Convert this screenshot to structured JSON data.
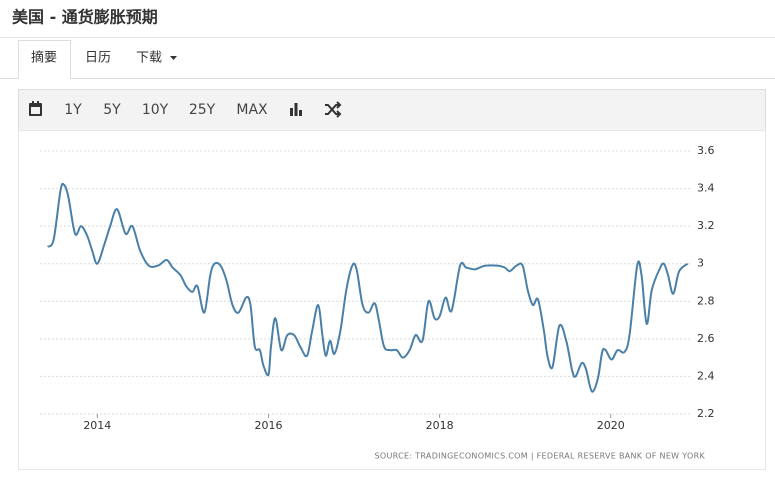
{
  "header": {
    "title": "美国 - 通货膨胀预期"
  },
  "tabs": [
    "摘要",
    "日历",
    "下载"
  ],
  "toolbar": {
    "ranges": [
      "1Y",
      "5Y",
      "10Y",
      "25Y",
      "MAX"
    ]
  },
  "chart_data": {
    "type": "line",
    "color": "#4a7fa8",
    "source": "SOURCE: TRADINGECONOMICS.COM  |  FEDERAL RESERVE BANK OF NEW YORK",
    "xlim": [
      2013.33,
      2020.95
    ],
    "xticks": [
      2014,
      2016,
      2018,
      2020
    ],
    "ylim": [
      2.2,
      3.6
    ],
    "yticks": [
      2.2,
      2.4,
      2.6,
      2.8,
      3,
      3.2,
      3.4,
      3.6
    ],
    "grid": true,
    "x": [
      2013.42,
      2013.49,
      2013.57,
      2013.61,
      2013.66,
      2013.74,
      2013.81,
      2013.88,
      2013.94,
      2014.0,
      2014.08,
      2014.15,
      2014.23,
      2014.33,
      2014.41,
      2014.5,
      2014.6,
      2014.71,
      2014.81,
      2014.88,
      2014.97,
      2015.04,
      2015.11,
      2015.17,
      2015.25,
      2015.32,
      2015.37,
      2015.44,
      2015.51,
      2015.58,
      2015.65,
      2015.74,
      2015.79,
      2015.84,
      2015.9,
      2015.94,
      2016.0,
      2016.03,
      2016.08,
      2016.15,
      2016.22,
      2016.3,
      2016.37,
      2016.45,
      2016.51,
      2016.58,
      2016.63,
      2016.67,
      2016.72,
      2016.77,
      2016.84,
      2016.91,
      2016.98,
      2017.03,
      2017.1,
      2017.17,
      2017.24,
      2017.29,
      2017.35,
      2017.42,
      2017.5,
      2017.57,
      2017.65,
      2017.72,
      2017.8,
      2017.87,
      2017.94,
      2018.0,
      2018.07,
      2018.14,
      2018.24,
      2018.31,
      2018.41,
      2018.47,
      2018.54,
      2018.67,
      2018.76,
      2018.82,
      2018.9,
      2018.97,
      2019.03,
      2019.09,
      2019.15,
      2019.22,
      2019.26,
      2019.32,
      2019.4,
      2019.48,
      2019.55,
      2019.59,
      2019.66,
      2019.71,
      2019.78,
      2019.85,
      2019.9,
      2019.94,
      2020.01,
      2020.08,
      2020.16,
      2020.22,
      2020.31,
      2020.36,
      2020.42,
      2020.48,
      2020.57,
      2020.62,
      2020.67,
      2020.73,
      2020.8,
      2020.9
    ],
    "values": [
      3.09,
      3.13,
      3.39,
      3.42,
      3.36,
      3.16,
      3.2,
      3.15,
      3.07,
      3.0,
      3.1,
      3.2,
      3.29,
      3.16,
      3.2,
      3.07,
      2.99,
      2.99,
      3.02,
      2.98,
      2.94,
      2.88,
      2.85,
      2.88,
      2.74,
      2.94,
      3.0,
      2.99,
      2.91,
      2.78,
      2.74,
      2.82,
      2.78,
      2.56,
      2.54,
      2.46,
      2.41,
      2.56,
      2.71,
      2.54,
      2.62,
      2.62,
      2.56,
      2.51,
      2.64,
      2.78,
      2.62,
      2.51,
      2.59,
      2.52,
      2.64,
      2.86,
      2.99,
      2.97,
      2.78,
      2.74,
      2.79,
      2.7,
      2.56,
      2.54,
      2.54,
      2.5,
      2.54,
      2.62,
      2.59,
      2.8,
      2.71,
      2.72,
      2.82,
      2.75,
      2.99,
      2.98,
      2.97,
      2.98,
      2.99,
      2.99,
      2.98,
      2.96,
      2.99,
      2.99,
      2.86,
      2.78,
      2.81,
      2.64,
      2.51,
      2.45,
      2.67,
      2.59,
      2.43,
      2.4,
      2.47,
      2.44,
      2.32,
      2.39,
      2.53,
      2.54,
      2.49,
      2.54,
      2.53,
      2.62,
      2.99,
      2.94,
      2.68,
      2.86,
      2.97,
      3.0,
      2.94,
      2.84,
      2.96,
      3.0
    ]
  }
}
